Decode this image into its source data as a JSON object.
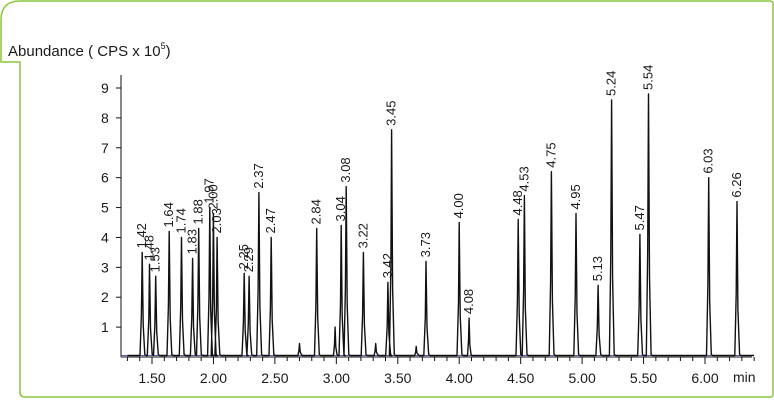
{
  "chart_data": {
    "type": "line",
    "ylabel_main": "Abundance ( CPS x 10",
    "ylabel_exp": "5",
    "ylabel_close": ")",
    "xlabel": "min",
    "xlim": [
      1.3,
      6.4
    ],
    "ylim": [
      0,
      9.5
    ],
    "x_ticks": [
      1.5,
      2.0,
      2.5,
      3.0,
      3.5,
      4.0,
      4.5,
      5.0,
      5.5,
      6.0
    ],
    "x_tick_labels": [
      "1.50",
      "2.00",
      "2.50",
      "3.00",
      "3.50",
      "4.00",
      "4.50",
      "5.00",
      "5.50",
      "6.00"
    ],
    "y_ticks": [
      1,
      2,
      3,
      4,
      5,
      6,
      7,
      8,
      9
    ],
    "y_tick_labels": [
      "1",
      "2",
      "3",
      "4",
      "5",
      "6",
      "7",
      "8",
      "9"
    ],
    "series": [
      {
        "peaks": [
          {
            "x": 1.42,
            "y": 3.5,
            "label": "1.42"
          },
          {
            "x": 1.48,
            "y": 3.1,
            "label": "1.48"
          },
          {
            "x": 1.53,
            "y": 2.7,
            "label": "1.53"
          },
          {
            "x": 1.64,
            "y": 4.2,
            "label": "1.64"
          },
          {
            "x": 1.74,
            "y": 4.0,
            "label": "1.74"
          },
          {
            "x": 1.83,
            "y": 3.3,
            "label": "1.83"
          },
          {
            "x": 1.88,
            "y": 4.3,
            "label": "1.88"
          },
          {
            "x": 1.97,
            "y": 5.0,
            "label": "1.97"
          },
          {
            "x": 2.0,
            "y": 4.8,
            "label": "2.00"
          },
          {
            "x": 2.03,
            "y": 4.0,
            "label": "2.03"
          },
          {
            "x": 2.25,
            "y": 2.8,
            "label": "2.25"
          },
          {
            "x": 2.29,
            "y": 2.7,
            "label": "2.29"
          },
          {
            "x": 2.37,
            "y": 5.5,
            "label": "2.37"
          },
          {
            "x": 2.47,
            "y": 4.0,
            "label": "2.47"
          },
          {
            "x": 2.7,
            "y": 0.45,
            "label": ""
          },
          {
            "x": 2.84,
            "y": 4.3,
            "label": "2.84"
          },
          {
            "x": 2.99,
            "y": 1.0,
            "label": ""
          },
          {
            "x": 3.04,
            "y": 4.4,
            "label": "3.04"
          },
          {
            "x": 3.08,
            "y": 5.7,
            "label": "3.08"
          },
          {
            "x": 3.22,
            "y": 3.5,
            "label": "3.22"
          },
          {
            "x": 3.32,
            "y": 0.45,
            "label": ""
          },
          {
            "x": 3.42,
            "y": 2.5,
            "label": "3.42"
          },
          {
            "x": 3.45,
            "y": 7.6,
            "label": "3.45"
          },
          {
            "x": 3.65,
            "y": 0.35,
            "label": ""
          },
          {
            "x": 3.73,
            "y": 3.2,
            "label": "3.73"
          },
          {
            "x": 4.0,
            "y": 4.5,
            "label": "4.00"
          },
          {
            "x": 4.08,
            "y": 1.3,
            "label": "4.08"
          },
          {
            "x": 4.48,
            "y": 4.6,
            "label": "4.48"
          },
          {
            "x": 4.53,
            "y": 5.4,
            "label": "4.53"
          },
          {
            "x": 4.75,
            "y": 6.2,
            "label": "4.75"
          },
          {
            "x": 4.95,
            "y": 4.8,
            "label": "4.95"
          },
          {
            "x": 5.13,
            "y": 2.4,
            "label": "5.13"
          },
          {
            "x": 5.24,
            "y": 8.6,
            "label": "5.24"
          },
          {
            "x": 5.47,
            "y": 4.1,
            "label": "5.47"
          },
          {
            "x": 5.54,
            "y": 8.8,
            "label": "5.54"
          },
          {
            "x": 6.03,
            "y": 6.0,
            "label": "6.03"
          },
          {
            "x": 6.26,
            "y": 5.2,
            "label": "6.26"
          }
        ]
      }
    ],
    "colors": {
      "frame": "#8cc63f",
      "trace": "#111111",
      "baseline": "#5b5fb0"
    }
  }
}
